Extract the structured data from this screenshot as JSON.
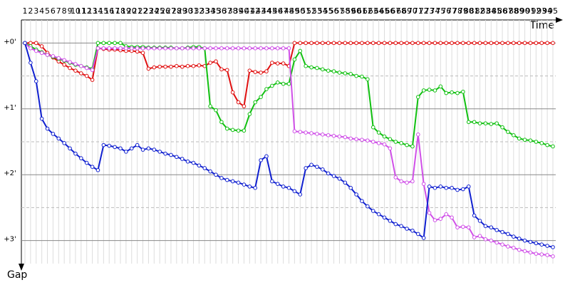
{
  "chart_data": {
    "type": "line",
    "x_label": "Time",
    "y_label": "Gap",
    "x": [
      1,
      2,
      3,
      4,
      5,
      6,
      7,
      8,
      9,
      10,
      11,
      12,
      13,
      14,
      15,
      16,
      17,
      18,
      19,
      20,
      21,
      22,
      23,
      24,
      25,
      26,
      27,
      28,
      29,
      30,
      31,
      32,
      33,
      34,
      35,
      36,
      37,
      38,
      39,
      40,
      41,
      42,
      43,
      44,
      45,
      46,
      47,
      48,
      49,
      50,
      51,
      52,
      53,
      54,
      55,
      56,
      57,
      58,
      59,
      60,
      61,
      62,
      63,
      64,
      65,
      66,
      67,
      68,
      69,
      70,
      71,
      72,
      73,
      74,
      75,
      76,
      77,
      78,
      79,
      80,
      81,
      82,
      83,
      84,
      85,
      86,
      87,
      88,
      89,
      90,
      91,
      92,
      93,
      94,
      95
    ],
    "xlim": [
      1,
      95
    ],
    "ylim": [
      -0.35,
      3.35
    ],
    "yticks": [
      {
        "value": 0,
        "label": "+0'"
      },
      {
        "value": 1,
        "label": "+1'"
      },
      {
        "value": 2,
        "label": "+2'"
      },
      {
        "value": 3,
        "label": "+3'"
      }
    ],
    "minor_yticks": [
      0.5,
      1.5,
      2.5
    ],
    "series": [
      {
        "color": "#e01010",
        "values": [
          0,
          0,
          0,
          0.05,
          0.15,
          0.22,
          0.28,
          0.33,
          0.38,
          0.42,
          0.46,
          0.5,
          0.56,
          0.08,
          0.09,
          0.1,
          0.1,
          0.11,
          0.12,
          0.12,
          0.13,
          0.15,
          0.39,
          0.37,
          0.36,
          0.36,
          0.36,
          0.35,
          0.36,
          0.35,
          0.35,
          0.34,
          0.35,
          0.3,
          0.28,
          0.4,
          0.41,
          0.75,
          0.9,
          0.96,
          0.42,
          0.44,
          0.45,
          0.43,
          0.3,
          0.31,
          0.31,
          0.35,
          0,
          0,
          0,
          0,
          0,
          0,
          0,
          0,
          0,
          0,
          0,
          0,
          0,
          0,
          0,
          0,
          0,
          0,
          0,
          0,
          0,
          0,
          0,
          0,
          0,
          0,
          0,
          0,
          0,
          0,
          0,
          0,
          0,
          0,
          0,
          0,
          0,
          0,
          0,
          0,
          0,
          0,
          0,
          0,
          0,
          0,
          0
        ]
      },
      {
        "color": "#10c010",
        "values": [
          0,
          0.05,
          0.1,
          0.14,
          0.18,
          0.21,
          0.24,
          0.27,
          0.3,
          0.33,
          0.35,
          0.37,
          0.39,
          0,
          0,
          0,
          0,
          0,
          0.05,
          0.06,
          0.06,
          0.06,
          0.07,
          0.07,
          0.07,
          0.07,
          0.07,
          0.08,
          0.08,
          0.07,
          0.06,
          0.06,
          0.08,
          0.96,
          1.02,
          1.2,
          1.3,
          1.32,
          1.33,
          1.33,
          1.08,
          0.9,
          0.82,
          0.7,
          0.65,
          0.6,
          0.62,
          0.62,
          0.25,
          0.12,
          0.35,
          0.37,
          0.38,
          0.4,
          0.42,
          0.43,
          0.45,
          0.46,
          0.47,
          0.5,
          0.51,
          0.55,
          1.28,
          1.36,
          1.42,
          1.46,
          1.5,
          1.52,
          1.55,
          1.57,
          0.82,
          0.72,
          0.71,
          0.72,
          0.66,
          0.76,
          0.75,
          0.76,
          0.74,
          1.2,
          1.2,
          1.22,
          1.22,
          1.23,
          1.22,
          1.28,
          1.35,
          1.4,
          1.45,
          1.47,
          1.48,
          1.5,
          1.52,
          1.55,
          1.57
        ]
      },
      {
        "color": "#d050e8",
        "values": [
          0,
          0.08,
          0.12,
          0.15,
          0.18,
          0.2,
          0.23,
          0.26,
          0.29,
          0.32,
          0.35,
          0.38,
          0.41,
          0.08,
          0.08,
          0.08,
          0.08,
          0.08,
          0.08,
          0.08,
          0.08,
          0.08,
          0.08,
          0.08,
          0.08,
          0.08,
          0.08,
          0.08,
          0.08,
          0.08,
          0.08,
          0.08,
          0.08,
          0.08,
          0.08,
          0.08,
          0.08,
          0.08,
          0.08,
          0.08,
          0.08,
          0.08,
          0.08,
          0.08,
          0.08,
          0.08,
          0.08,
          0.08,
          1.34,
          1.35,
          1.36,
          1.37,
          1.38,
          1.39,
          1.4,
          1.41,
          1.42,
          1.43,
          1.45,
          1.46,
          1.47,
          1.48,
          1.5,
          1.52,
          1.54,
          1.6,
          2.04,
          2.1,
          2.12,
          2.1,
          1.39,
          2.14,
          2.58,
          2.69,
          2.67,
          2.6,
          2.65,
          2.8,
          2.79,
          2.8,
          2.95,
          2.93,
          2.98,
          3.0,
          3.03,
          3.06,
          3.09,
          3.11,
          3.14,
          3.16,
          3.18,
          3.2,
          3.21,
          3.22,
          3.24
        ]
      },
      {
        "color": "#1020d0",
        "values": [
          0,
          0.3,
          0.58,
          1.15,
          1.3,
          1.38,
          1.45,
          1.52,
          1.6,
          1.68,
          1.75,
          1.82,
          1.88,
          1.93,
          1.55,
          1.56,
          1.58,
          1.6,
          1.65,
          1.6,
          1.55,
          1.62,
          1.6,
          1.62,
          1.65,
          1.68,
          1.7,
          1.73,
          1.76,
          1.8,
          1.82,
          1.86,
          1.9,
          1.95,
          2.0,
          2.05,
          2.08,
          2.1,
          2.12,
          2.15,
          2.18,
          2.2,
          1.78,
          1.72,
          2.1,
          2.14,
          2.18,
          2.2,
          2.25,
          2.3,
          1.9,
          1.85,
          1.88,
          1.92,
          1.98,
          2.02,
          2.06,
          2.12,
          2.2,
          2.3,
          2.4,
          2.48,
          2.55,
          2.6,
          2.65,
          2.7,
          2.75,
          2.78,
          2.82,
          2.85,
          2.9,
          2.96,
          2.18,
          2.2,
          2.18,
          2.2,
          2.2,
          2.23,
          2.22,
          2.18,
          2.62,
          2.7,
          2.78,
          2.8,
          2.84,
          2.87,
          2.9,
          2.94,
          2.97,
          3.0,
          3.02,
          3.04,
          3.06,
          3.08,
          3.1
        ]
      }
    ]
  }
}
